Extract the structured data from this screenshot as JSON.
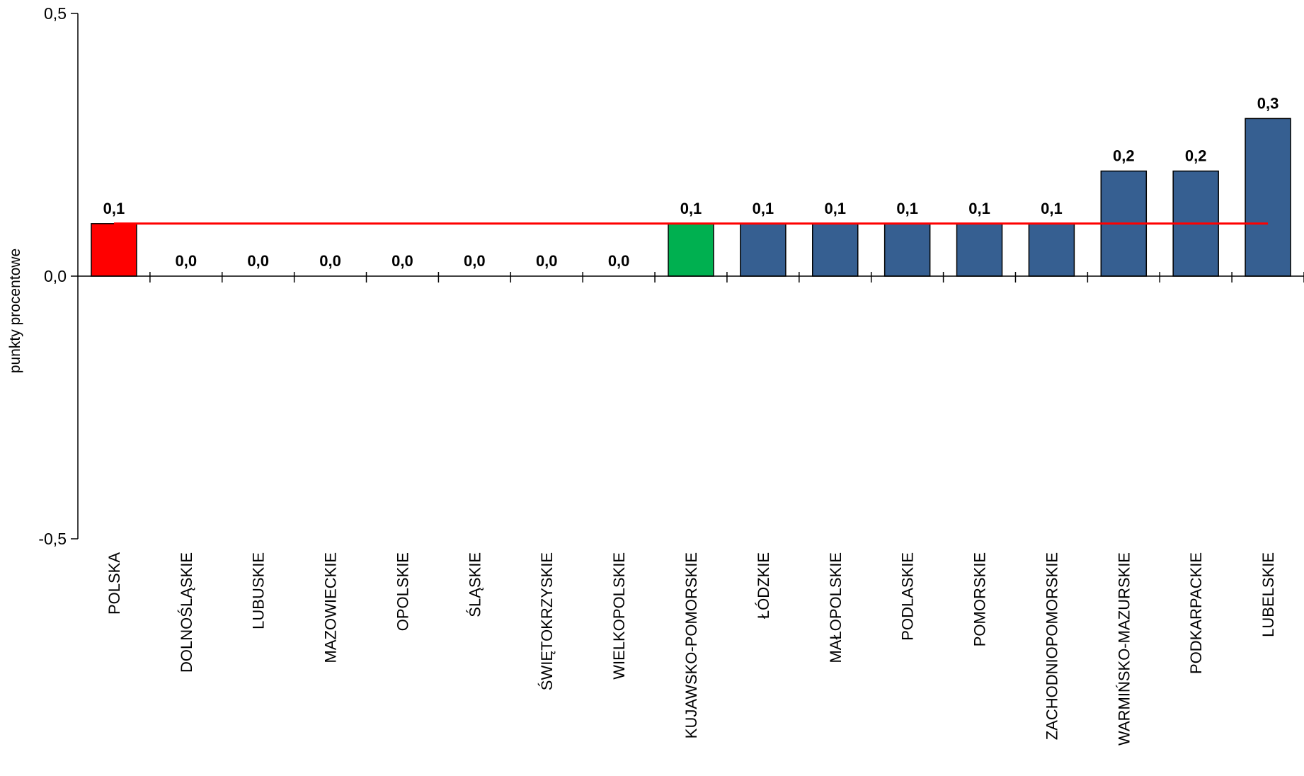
{
  "chart_data": {
    "type": "bar",
    "ylabel": "punkty procentowe",
    "ylim": [
      -0.5,
      0.5
    ],
    "yticks": [
      "0,5",
      "0,0",
      "-0,5"
    ],
    "ytick_values": [
      0.5,
      0.0,
      -0.5
    ],
    "categories": [
      "POLSKA",
      "DOLNOŚLĄSKIE",
      "LUBUSKIE",
      "MAZOWIECKIE",
      "OPOLSKIE",
      "ŚLĄSKIE",
      "ŚWIĘTOKRZYSKIE",
      "WIELKOPOLSKIE",
      "KUJAWSKO-POMORSKIE",
      "ŁÓDZKIE",
      "MAŁOPOLSKIE",
      "PODLASKIE",
      "POMORSKIE",
      "ZACHODNIOPOMORSKIE",
      "WARMIŃSKO-MAZURSKIE",
      "PODKARPACKIE",
      "LUBELSKIE"
    ],
    "values": [
      0.1,
      0.0,
      0.0,
      0.0,
      0.0,
      0.0,
      0.0,
      0.0,
      0.1,
      0.1,
      0.1,
      0.1,
      0.1,
      0.1,
      0.2,
      0.2,
      0.3
    ],
    "value_labels": [
      "0,1",
      "0,0",
      "0,0",
      "0,0",
      "0,0",
      "0,0",
      "0,0",
      "0,0",
      "0,1",
      "0,1",
      "0,1",
      "0,1",
      "0,1",
      "0,1",
      "0,2",
      "0,2",
      "0,3"
    ],
    "bar_colors": [
      "#ff0000",
      "#365f91",
      "#365f91",
      "#365f91",
      "#365f91",
      "#365f91",
      "#365f91",
      "#365f91",
      "#00b050",
      "#365f91",
      "#365f91",
      "#365f91",
      "#365f91",
      "#365f91",
      "#365f91",
      "#365f91",
      "#365f91"
    ],
    "reference_line": {
      "value": 0.1,
      "color": "#ff0000"
    },
    "grid": false,
    "legend": "none"
  }
}
